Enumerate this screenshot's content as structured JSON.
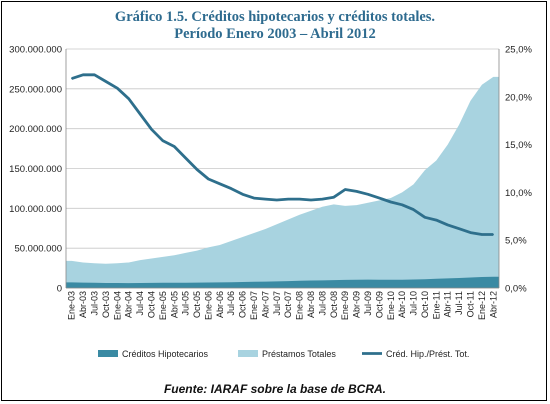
{
  "header": {
    "title_line1": "Gráfico  1.5. Créditos hipotecarios y créditos totales.",
    "title_line2": "Período Enero 2003 – Abril 2012"
  },
  "footer": {
    "source": "Fuente: IARAF sobre la base de BCRA."
  },
  "colors": {
    "hipotecarios": "#3a8aa3",
    "prestamos": "#a8d3e0",
    "ratio": "#2e6f8c",
    "title": "#2e6b8f"
  },
  "chart_data": {
    "type": "area",
    "x_labels": [
      "Ene-03",
      "Abr-03",
      "Jul-03",
      "Oct-03",
      "Ene-04",
      "Abr-04",
      "Jul-04",
      "Oct-04",
      "Ene-05",
      "Abr-05",
      "Jul-05",
      "Oct-05",
      "Ene-06",
      "Abr-06",
      "Jul-06",
      "Oct-06",
      "Ene-07",
      "Abr-07",
      "Jul-07",
      "Oct-07",
      "Ene-08",
      "Abr-08",
      "Jul-08",
      "Oct-08",
      "Ene-09",
      "Abr-09",
      "Jul-09",
      "Oct-09",
      "Ene-10",
      "Abr-10",
      "Jul-10",
      "Oct-10",
      "Ene-11",
      "Abr-11",
      "Jul-11",
      "Oct-11",
      "Ene-12",
      "Abr-12"
    ],
    "y_left": {
      "min": 0,
      "max": 300000000,
      "step": 50000000,
      "tick_labels": [
        "0",
        "50.000.000",
        "100.000.000",
        "150.000.000",
        "200.000.000",
        "250.000.000",
        "300.000.000"
      ]
    },
    "y_right": {
      "min": 0,
      "max": 0.25,
      "step": 0.05,
      "tick_labels": [
        "0,0%",
        "5,0%",
        "10,0%",
        "15,0%",
        "20,0%",
        "25,0%"
      ]
    },
    "grid": true,
    "legend_position": "bottom",
    "series": [
      {
        "name": "Créditos Hipotecarios",
        "kind": "area",
        "axis": "left",
        "values": [
          7000000,
          6800000,
          6500000,
          6300000,
          6300000,
          6200000,
          6300000,
          6400000,
          6500000,
          6600000,
          6700000,
          6800000,
          6900000,
          7000000,
          7200000,
          7500000,
          7800000,
          8000000,
          8300000,
          8600000,
          9000000,
          9400000,
          9600000,
          9900000,
          10200000,
          10400000,
          10500000,
          10400000,
          10300000,
          10400000,
          10700000,
          11000000,
          11500000,
          12000000,
          12600000,
          13200000,
          13800000,
          14200000
        ]
      },
      {
        "name": "Préstamos Totales",
        "kind": "area",
        "axis": "left",
        "values": [
          34000000,
          32000000,
          31000000,
          30500000,
          31000000,
          32000000,
          35000000,
          37000000,
          39000000,
          41000000,
          44000000,
          47000000,
          51000000,
          54000000,
          59000000,
          64000000,
          69000000,
          74000000,
          80000000,
          86000000,
          92000000,
          97000000,
          102000000,
          105000000,
          103000000,
          104000000,
          107000000,
          110000000,
          113000000,
          120000000,
          130000000,
          148000000,
          160000000,
          180000000,
          205000000,
          235000000,
          255000000,
          265000000
        ]
      },
      {
        "name": "Créd. Hip./Prést. Tot.",
        "kind": "line",
        "axis": "right",
        "values": [
          0.219,
          0.223,
          0.223,
          0.216,
          0.209,
          0.198,
          0.182,
          0.166,
          0.154,
          0.148,
          0.136,
          0.124,
          0.114,
          0.109,
          0.104,
          0.098,
          0.094,
          0.093,
          0.092,
          0.093,
          0.093,
          0.092,
          0.093,
          0.095,
          0.103,
          0.101,
          0.098,
          0.094,
          0.09,
          0.087,
          0.082,
          0.074,
          0.071,
          0.066,
          0.062,
          0.058,
          0.056,
          0.056
        ]
      }
    ]
  }
}
